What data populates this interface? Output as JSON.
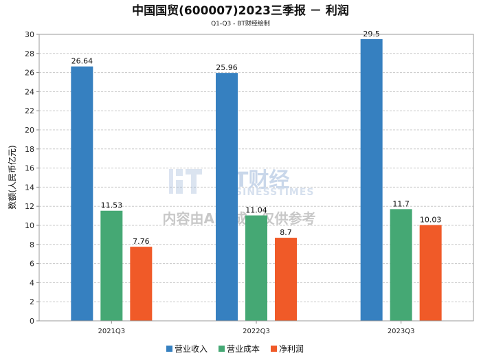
{
  "chart_data": {
    "type": "bar",
    "title": "中国国贸(600007)2023三季报 － 利润",
    "subtitle": "Q1-Q3 - BT财经绘制",
    "ylabel": "数额(人民币亿元)",
    "xlabel": "",
    "categories": [
      "2021Q3",
      "2022Q3",
      "2023Q3"
    ],
    "ylim": [
      0,
      30
    ],
    "yticks": [
      0,
      2,
      4,
      6,
      8,
      10,
      12,
      14,
      16,
      18,
      20,
      22,
      24,
      26,
      28,
      30
    ],
    "grid": true,
    "legend_position": "bottom",
    "series": [
      {
        "name": "营业收入",
        "color": "#3680c0",
        "values": [
          26.64,
          25.96,
          29.5
        ],
        "labels": [
          "26.64",
          "25.96",
          "29.5"
        ]
      },
      {
        "name": "营业成本",
        "color": "#45a874",
        "values": [
          11.53,
          11.04,
          11.7
        ],
        "labels": [
          "11.53",
          "11.04",
          "11.7"
        ]
      },
      {
        "name": "净利润",
        "color": "#f05a28",
        "values": [
          7.76,
          8.7,
          10.03
        ],
        "labels": [
          "7.76",
          "8.7",
          "10.03"
        ]
      }
    ]
  },
  "watermark": {
    "brand_cn": "BT财经",
    "brand_en": "BUSINESSTIMES",
    "note": "内容由AI生成，仅供参考"
  }
}
